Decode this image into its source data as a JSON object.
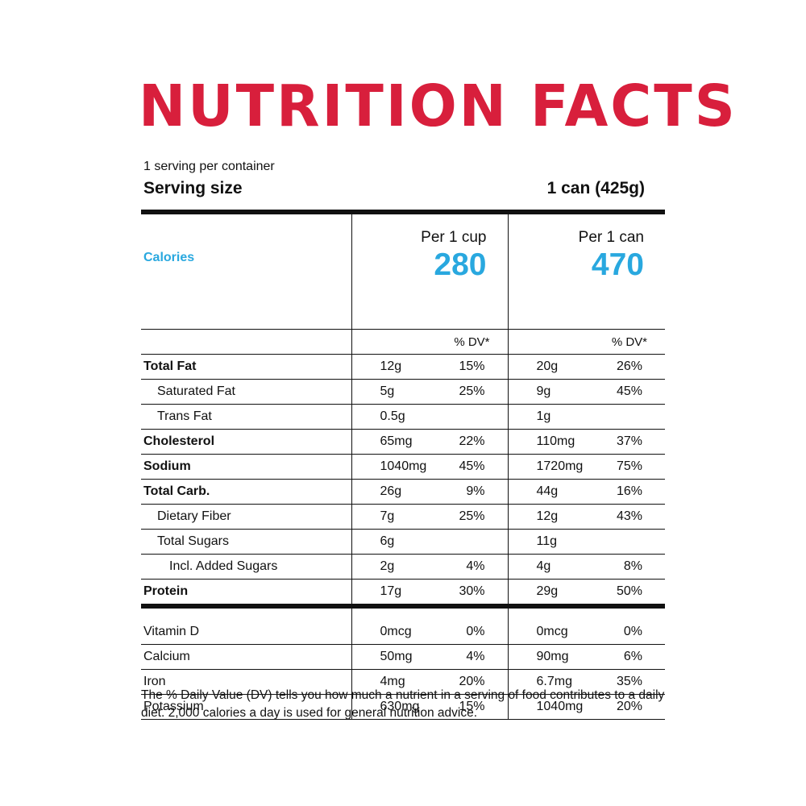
{
  "title": "NUTRITION FACTS",
  "title_color": "#d81f3c",
  "accent_color": "#29a8df",
  "servings_per_container": "1 serving per container",
  "serving_size_label": "Serving size",
  "serving_size_value": "1 can (425g)",
  "calories_label": "Calories",
  "columns": [
    {
      "header": "Per 1 cup",
      "calories": "280",
      "dv_header": "% DV*"
    },
    {
      "header": "Per 1 can",
      "calories": "470",
      "dv_header": "% DV*"
    }
  ],
  "nutrients": [
    {
      "name": "Total Fat",
      "bold": true,
      "indent": 0,
      "cup": {
        "amount": "12g",
        "dv": "15%"
      },
      "can": {
        "amount": "20g",
        "dv": "26%"
      }
    },
    {
      "name": "Saturated Fat",
      "bold": false,
      "indent": 1,
      "cup": {
        "amount": "5g",
        "dv": "25%"
      },
      "can": {
        "amount": "9g",
        "dv": "45%"
      }
    },
    {
      "name": "Trans Fat",
      "bold": false,
      "indent": 1,
      "cup": {
        "amount": "0.5g",
        "dv": ""
      },
      "can": {
        "amount": "1g",
        "dv": ""
      }
    },
    {
      "name": "Cholesterol",
      "bold": true,
      "indent": 0,
      "cup": {
        "amount": "65mg",
        "dv": "22%"
      },
      "can": {
        "amount": "110mg",
        "dv": "37%"
      }
    },
    {
      "name": "Sodium",
      "bold": true,
      "indent": 0,
      "cup": {
        "amount": "1040mg",
        "dv": "45%"
      },
      "can": {
        "amount": "1720mg",
        "dv": "75%"
      }
    },
    {
      "name": "Total Carb.",
      "bold": true,
      "indent": 0,
      "cup": {
        "amount": "26g",
        "dv": "9%"
      },
      "can": {
        "amount": "44g",
        "dv": "16%"
      }
    },
    {
      "name": "Dietary Fiber",
      "bold": false,
      "indent": 1,
      "cup": {
        "amount": "7g",
        "dv": "25%"
      },
      "can": {
        "amount": "12g",
        "dv": "43%"
      }
    },
    {
      "name": "Total Sugars",
      "bold": false,
      "indent": 1,
      "cup": {
        "amount": "6g",
        "dv": ""
      },
      "can": {
        "amount": "11g",
        "dv": ""
      }
    },
    {
      "name": "Incl. Added Sugars",
      "bold": false,
      "indent": 2,
      "cup": {
        "amount": "2g",
        "dv": "4%"
      },
      "can": {
        "amount": "4g",
        "dv": "8%"
      }
    },
    {
      "name": "Protein",
      "bold": true,
      "indent": 0,
      "cup": {
        "amount": "17g",
        "dv": "30%"
      },
      "can": {
        "amount": "29g",
        "dv": "50%"
      }
    }
  ],
  "vitamins": [
    {
      "name": "Vitamin D",
      "cup": {
        "amount": "0mcg",
        "dv": "0%"
      },
      "can": {
        "amount": "0mcg",
        "dv": "0%"
      }
    },
    {
      "name": "Calcium",
      "cup": {
        "amount": "50mg",
        "dv": "4%"
      },
      "can": {
        "amount": "90mg",
        "dv": "6%"
      }
    },
    {
      "name": "Iron",
      "cup": {
        "amount": "4mg",
        "dv": "20%"
      },
      "can": {
        "amount": "6.7mg",
        "dv": "35%"
      }
    },
    {
      "name": "Potassium",
      "cup": {
        "amount": "630mg",
        "dv": "15%"
      },
      "can": {
        "amount": "1040mg",
        "dv": "20%"
      }
    }
  ],
  "footnote": "The % Daily Value (DV) tells you how much a nutrient in a serving of food contributes to a daily diet. 2,000 calories a day is used for general nutrition advice."
}
